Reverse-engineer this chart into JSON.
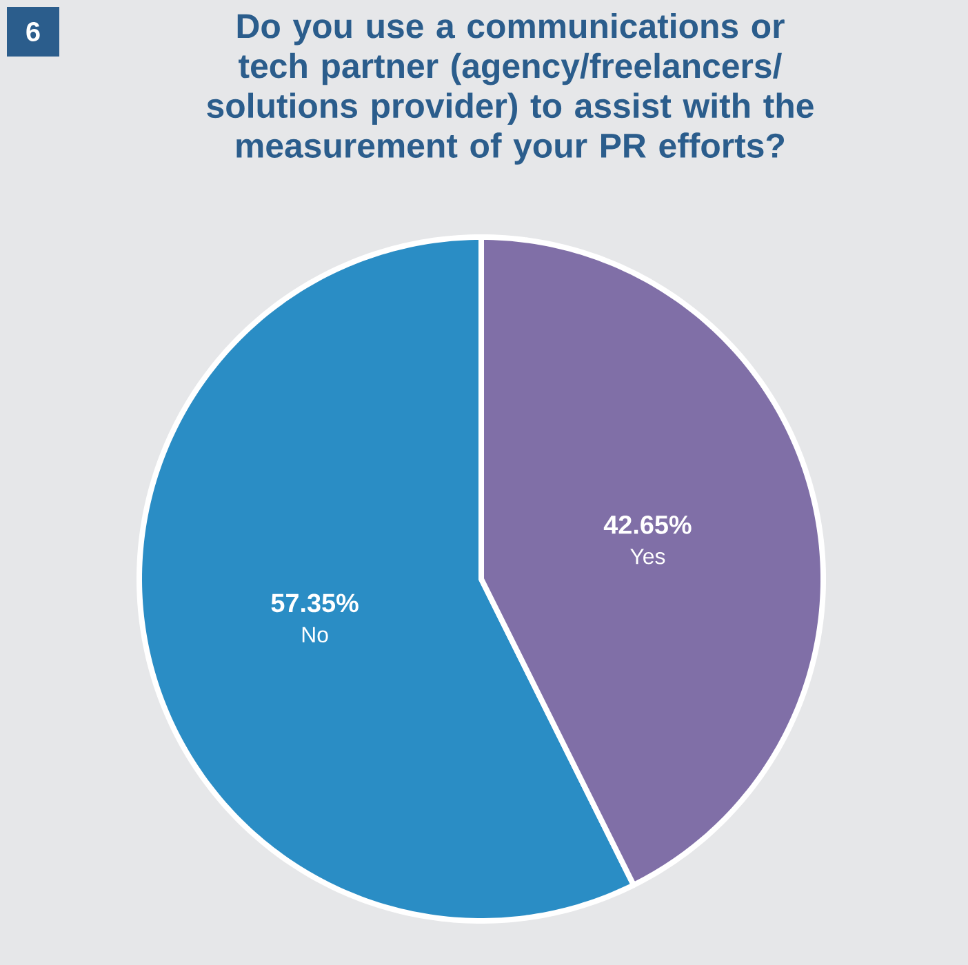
{
  "chart_data": {
    "type": "pie",
    "title": "Do you use a communications or tech partner (agency/freelancers/ solutions provider) to assist with the measurement of your PR efforts?",
    "categories": [
      "No",
      "Yes"
    ],
    "values": [
      57.35,
      42.65
    ],
    "colors": [
      "#2a8dc5",
      "#806fa7"
    ],
    "value_labels": [
      "57.35%",
      "42.65%"
    ],
    "annotations": [
      "6"
    ]
  }
}
